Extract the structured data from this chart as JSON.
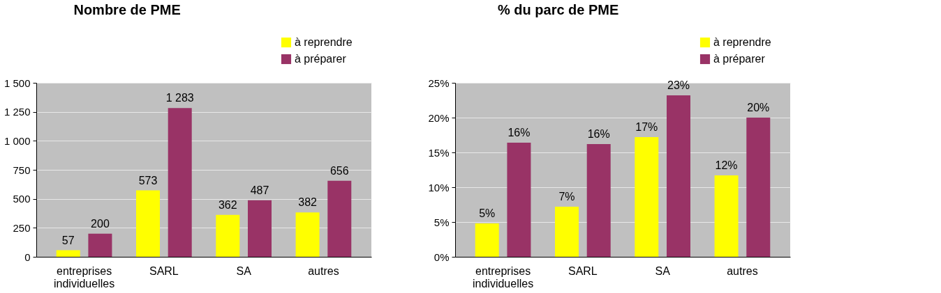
{
  "chart_data": [
    {
      "type": "bar",
      "title": "Nombre de PME",
      "categories": [
        "entreprises individuelles",
        "SARL",
        "SA",
        "autres"
      ],
      "series": [
        {
          "name": "à reprendre",
          "color": "#ffff00",
          "values": [
            57,
            573,
            362,
            382
          ],
          "value_labels": [
            "57",
            "573",
            "362",
            "382"
          ]
        },
        {
          "name": "à préparer",
          "color": "#993366",
          "values": [
            200,
            1283,
            487,
            656
          ],
          "value_labels": [
            "200",
            "1 283",
            "487",
            "656"
          ]
        }
      ],
      "ylim": [
        0,
        1500
      ],
      "yticks": [
        0,
        250,
        500,
        750,
        {
          "value": 1000,
          "label": "1 000"
        },
        {
          "value": 1250,
          "label": "1 250"
        },
        {
          "value": 1500,
          "label": "1 500"
        }
      ],
      "grid": "y",
      "legend": "top right"
    },
    {
      "type": "bar",
      "title": "% du parc de PME",
      "categories": [
        "entreprises individuelles",
        "SARL",
        "SA",
        "autres"
      ],
      "series": [
        {
          "name": "à reprendre",
          "color": "#ffff00",
          "values": [
            4.8,
            7.2,
            17.2,
            11.7
          ],
          "value_labels": [
            "5%",
            "7%",
            "17%",
            "12%"
          ]
        },
        {
          "name": "à préparer",
          "color": "#993366",
          "values": [
            16.4,
            16.2,
            23.2,
            20.0
          ],
          "value_labels": [
            "16%",
            "16%",
            "23%",
            "20%"
          ]
        }
      ],
      "ylim": [
        0,
        25
      ],
      "yticks": [
        {
          "value": 0,
          "label": "0%"
        },
        {
          "value": 5,
          "label": "5%"
        },
        {
          "value": 10,
          "label": "10%"
        },
        {
          "value": 15,
          "label": "15%"
        },
        {
          "value": 20,
          "label": "20%"
        },
        {
          "value": 25,
          "label": "25%"
        }
      ],
      "grid": "y",
      "legend": "top right"
    }
  ]
}
